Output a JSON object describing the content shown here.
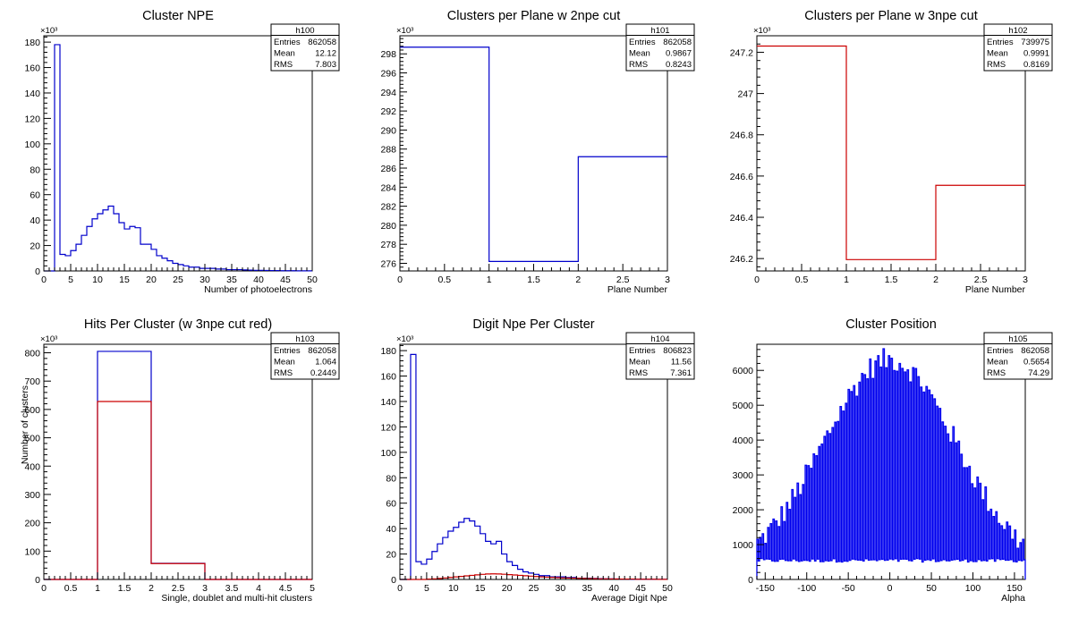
{
  "chart_data": [
    {
      "type": "bar",
      "title": "Cluster NPE",
      "xlabel": "Number of photoelectrons",
      "ylabel": "",
      "xlim": [
        0,
        50
      ],
      "ylim": [
        0,
        185
      ],
      "y_multiplier": "×10³",
      "x_ticks": [
        0,
        5,
        10,
        15,
        20,
        25,
        30,
        35,
        40,
        45,
        50
      ],
      "y_ticks": [
        0,
        20,
        40,
        60,
        80,
        100,
        120,
        140,
        160,
        180
      ],
      "stats": {
        "name": "h100",
        "rows": [
          [
            "Entries",
            "862058"
          ],
          [
            "Mean",
            "12.12"
          ],
          [
            "RMS",
            "7.803"
          ]
        ]
      },
      "series": [
        {
          "color": "#0000cc",
          "bin_width": 1,
          "x_start": 0,
          "values": [
            0,
            0,
            178,
            13,
            12,
            16,
            21,
            28,
            35,
            41,
            45,
            48,
            51,
            45,
            38,
            33,
            35,
            34,
            21,
            21,
            17,
            12,
            10,
            8,
            6,
            5,
            4,
            3,
            3,
            2,
            2,
            2,
            1.5,
            1.5,
            1,
            1,
            1,
            0.8,
            0.6,
            0.5,
            0.5,
            0.4,
            0.3,
            0.3,
            0.2,
            0.2,
            0.2,
            0.1,
            0.1,
            0.1
          ]
        }
      ]
    },
    {
      "type": "bar",
      "title": "Clusters per Plane w 2npe cut",
      "xlabel": "Plane Number",
      "ylabel": "",
      "xlim": [
        0,
        3
      ],
      "ylim": [
        275.2,
        299.9
      ],
      "y_multiplier": "×10³",
      "x_ticks": [
        0,
        0.5,
        1,
        1.5,
        2,
        2.5,
        3
      ],
      "y_ticks": [
        276,
        278,
        280,
        282,
        284,
        286,
        288,
        290,
        292,
        294,
        296,
        298
      ],
      "stats": {
        "name": "h101",
        "rows": [
          [
            "Entries",
            "862058"
          ],
          [
            "Mean",
            "0.9867"
          ],
          [
            "RMS",
            "0.8243"
          ]
        ]
      },
      "series": [
        {
          "color": "#0000cc",
          "bin_width": 1,
          "x_start": 0,
          "values": [
            298.7,
            276.2,
            287.2
          ]
        }
      ]
    },
    {
      "type": "bar",
      "title": "Clusters per Plane w 3npe cut",
      "xlabel": "Plane Number",
      "ylabel": "",
      "xlim": [
        0,
        3
      ],
      "ylim": [
        246.14,
        247.28
      ],
      "y_multiplier": "×10³",
      "x_ticks": [
        0,
        0.5,
        1,
        1.5,
        2,
        2.5,
        3
      ],
      "y_ticks": [
        246.2,
        246.4,
        246.6,
        246.8,
        247,
        247.2
      ],
      "stats": {
        "name": "h102",
        "rows": [
          [
            "Entries",
            "739975"
          ],
          [
            "Mean",
            "0.9991"
          ],
          [
            "RMS",
            "0.8169"
          ]
        ]
      },
      "series": [
        {
          "color": "#cc0000",
          "bin_width": 1,
          "x_start": 0,
          "values": [
            247.23,
            246.195,
            246.555
          ]
        }
      ]
    },
    {
      "type": "bar",
      "title": "Hits Per Cluster (w 3npe cut red)",
      "xlabel": "Single, doublet and multi-hit clusters",
      "ylabel": "Number of clusters",
      "xlim": [
        0,
        5
      ],
      "ylim": [
        0,
        830
      ],
      "y_multiplier": "×10³",
      "x_ticks": [
        0,
        0.5,
        1,
        1.5,
        2,
        2.5,
        3,
        3.5,
        4,
        4.5,
        5
      ],
      "y_ticks": [
        0,
        100,
        200,
        300,
        400,
        500,
        600,
        700,
        800
      ],
      "stats": {
        "name": "h103",
        "rows": [
          [
            "Entries",
            "862058"
          ],
          [
            "Mean",
            "1.064"
          ],
          [
            "RMS",
            "0.2449"
          ]
        ]
      },
      "series": [
        {
          "color": "#0000cc",
          "bin_width": 1,
          "x_start": 0,
          "values": [
            0,
            805,
            57,
            0,
            0
          ]
        },
        {
          "color": "#cc0000",
          "bin_width": 1,
          "x_start": 0,
          "values": [
            0,
            628,
            56,
            0,
            0
          ]
        }
      ]
    },
    {
      "type": "bar",
      "title": "Digit Npe Per Cluster",
      "xlabel": "Average Digit Npe",
      "ylabel": "",
      "xlim": [
        0,
        50
      ],
      "ylim": [
        0,
        185
      ],
      "y_multiplier": "×10³",
      "x_ticks": [
        0,
        5,
        10,
        15,
        20,
        25,
        30,
        35,
        40,
        45,
        50
      ],
      "y_ticks": [
        0,
        20,
        40,
        60,
        80,
        100,
        120,
        140,
        160,
        180
      ],
      "stats": {
        "name": "h104",
        "rows": [
          [
            "Entries",
            "806823"
          ],
          [
            "Mean",
            "11.56"
          ],
          [
            "RMS",
            "7.361"
          ]
        ]
      },
      "series": [
        {
          "color": "#0000cc",
          "bin_width": 1,
          "x_start": 0,
          "values": [
            0,
            0,
            177,
            14,
            12,
            16,
            22,
            28,
            33,
            38,
            41,
            45,
            48,
            46,
            42,
            36,
            30,
            28,
            30,
            20,
            14,
            11,
            8,
            6,
            5,
            4,
            3,
            3,
            2,
            2,
            2,
            1.5,
            1.5,
            1,
            1,
            1,
            0.8,
            0.6,
            0.5,
            0.5,
            0.4,
            0.3,
            0.3,
            0.2,
            0.2,
            0.2,
            0.1,
            0.1,
            0.1,
            0.1
          ]
        },
        {
          "color": "#cc0000",
          "bin_width": 1,
          "x_start": 0,
          "values": [
            0,
            0,
            0,
            0,
            0,
            0.3,
            0.5,
            0.8,
            1.2,
            1.6,
            2.0,
            2.4,
            2.8,
            3.2,
            3.6,
            4.0,
            4.3,
            4.4,
            4.3,
            4.1,
            3.8,
            3.5,
            3.2,
            2.9,
            2.6,
            2.3,
            2.0,
            1.8,
            1.6,
            1.4,
            1.2,
            1.1,
            1.0,
            0.9,
            0.8,
            0.7,
            0.6,
            0.5,
            0.5,
            0.4,
            0.4,
            0.3,
            0.3,
            0.3,
            0.2,
            0.2,
            0.2,
            0.2,
            0.1,
            0.1
          ]
        }
      ]
    },
    {
      "type": "bar",
      "title": "Cluster Position",
      "xlabel": "Alpha",
      "ylabel": "",
      "xlim": [
        -160,
        163
      ],
      "ylim": [
        0,
        6750
      ],
      "y_multiplier": "",
      "x_ticks": [
        -150,
        -100,
        -50,
        0,
        50,
        100,
        150
      ],
      "y_ticks": [
        0,
        1000,
        2000,
        3000,
        4000,
        5000,
        6000
      ],
      "stats": {
        "name": "h105",
        "rows": [
          [
            "Entries",
            "862058"
          ],
          [
            "Mean",
            "0.5654"
          ],
          [
            "RMS",
            "74.29"
          ]
        ]
      },
      "series": [
        {
          "color": "#0000ee",
          "mode": "comb",
          "x_start": -160,
          "x_end": 163,
          "bin_width": 1.615,
          "peak_x": 0,
          "sigma": 80,
          "peak": 6100,
          "base": 200,
          "baseline": 550,
          "jitter": 350
        }
      ]
    }
  ]
}
